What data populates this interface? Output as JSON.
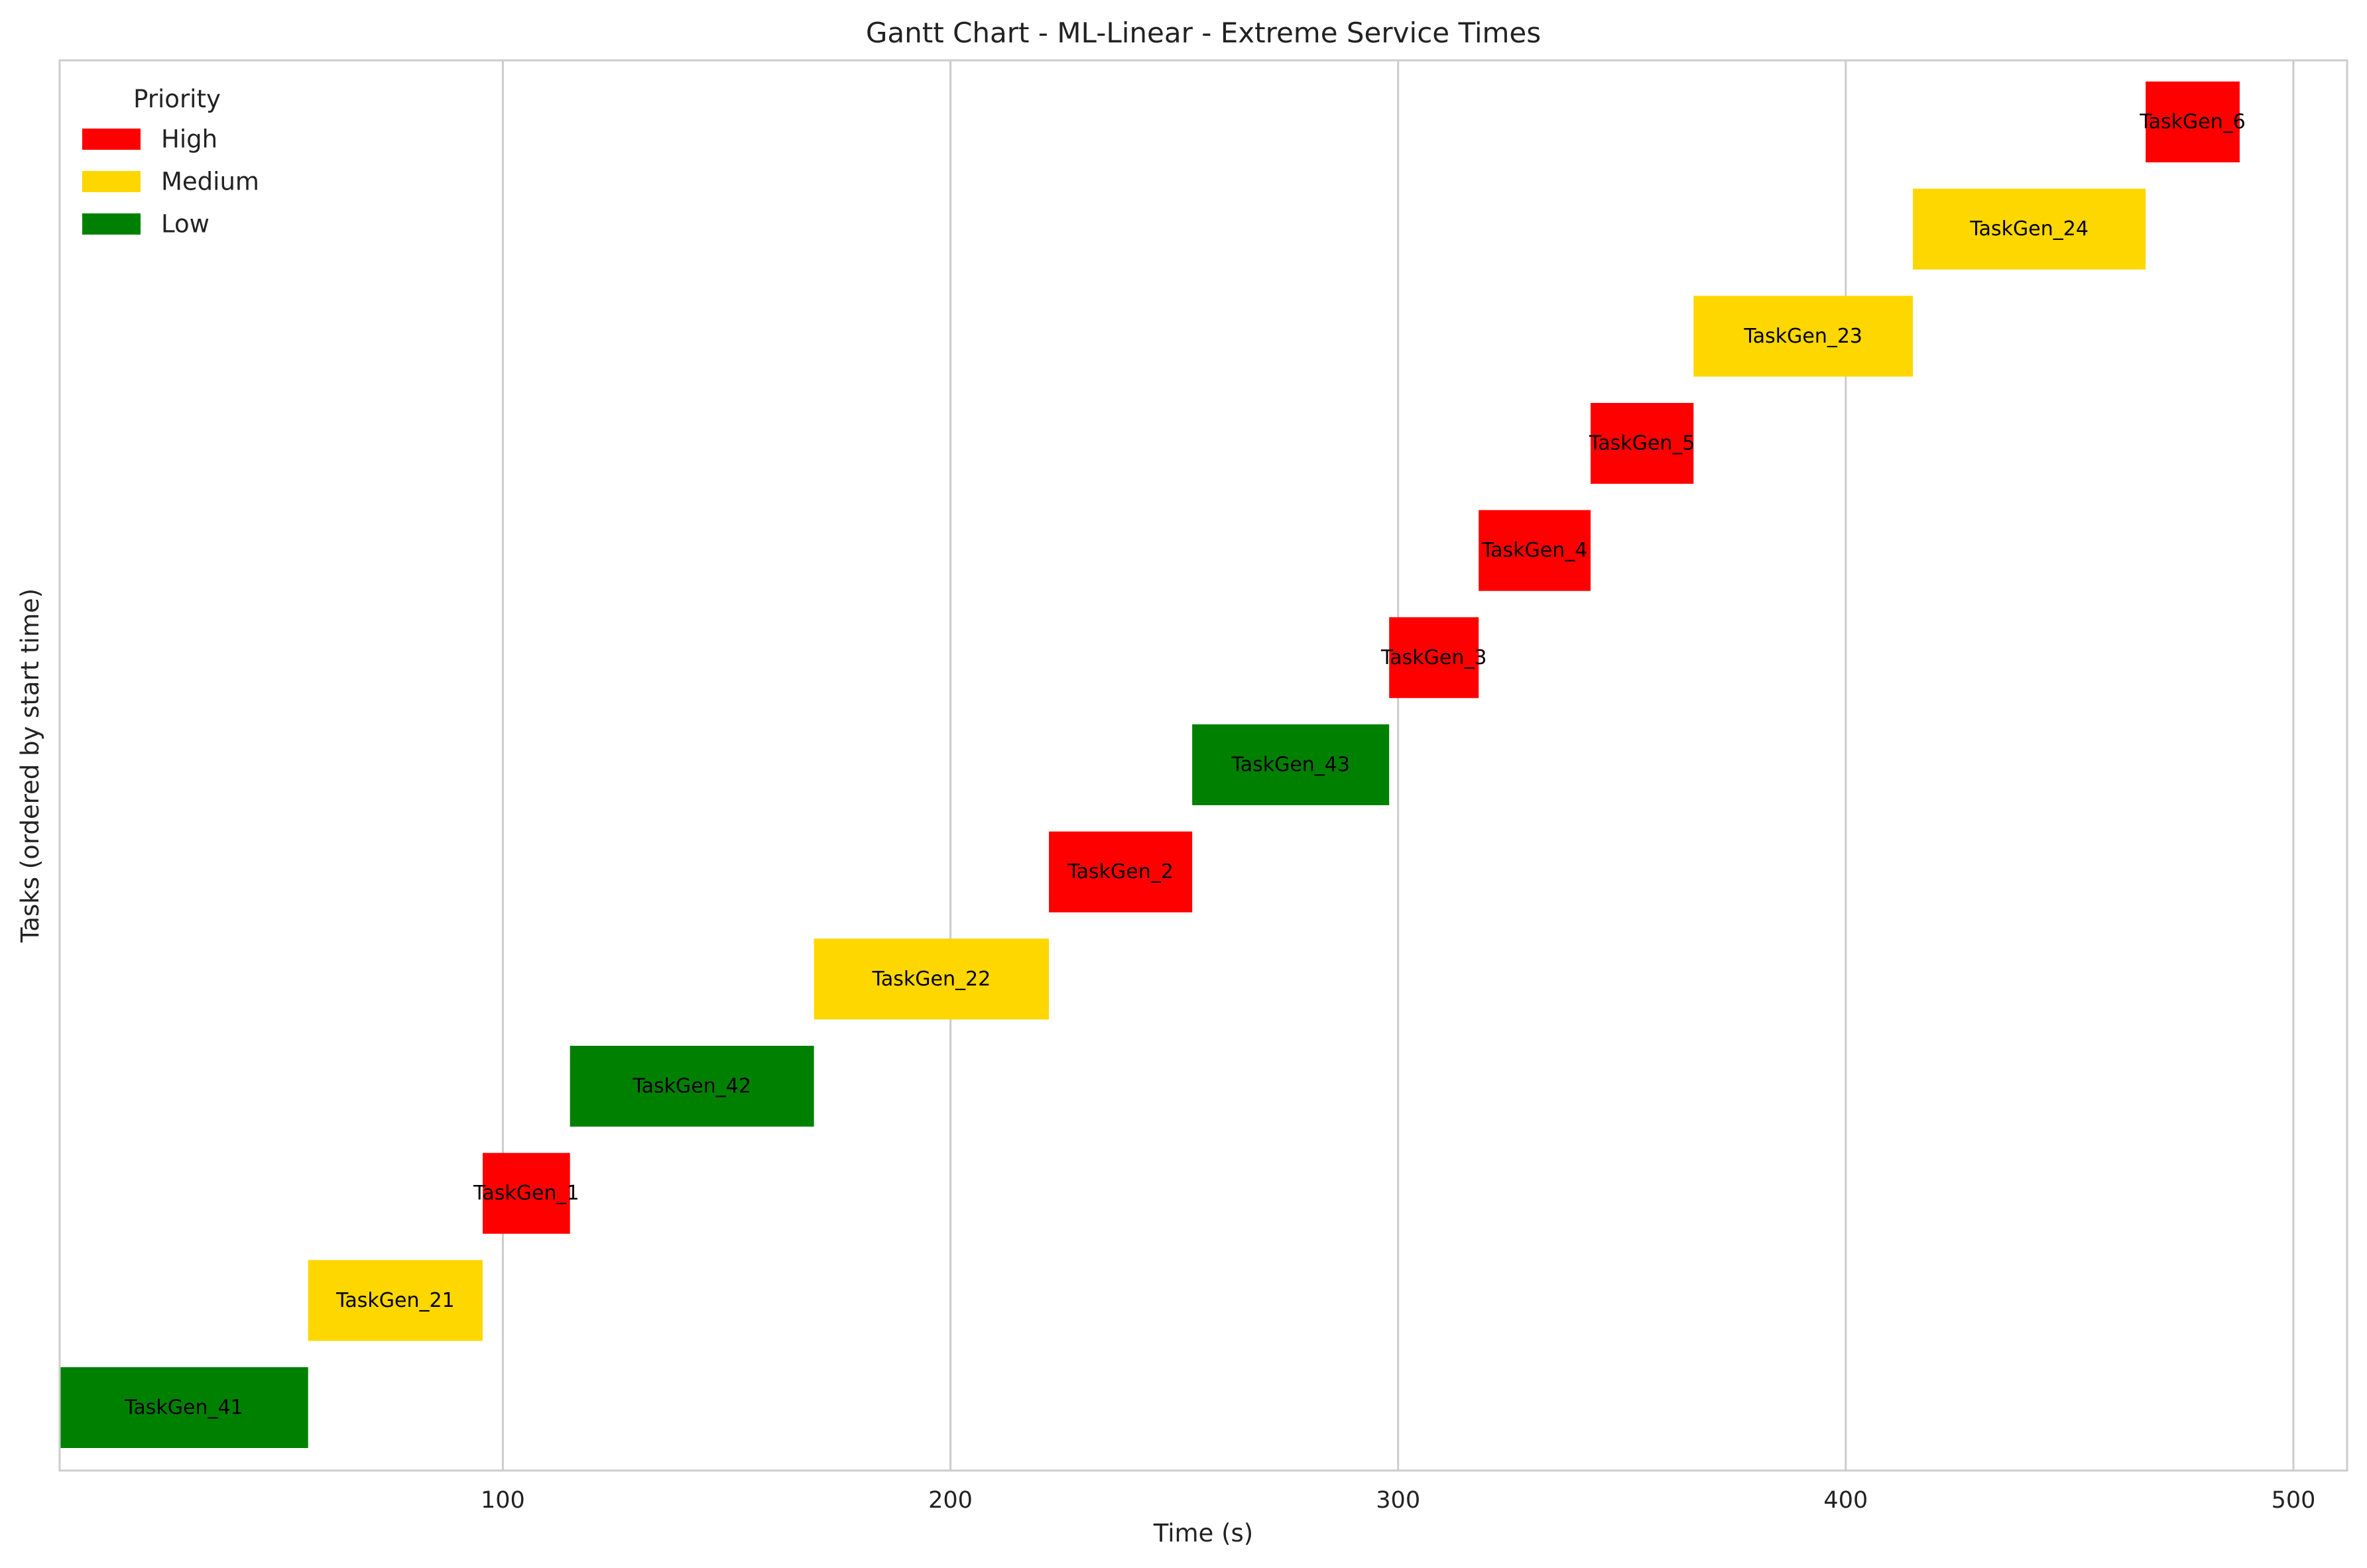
{
  "chart_data": {
    "type": "gantt",
    "title": "Gantt Chart - ML-Linear - Extreme Service Times",
    "xlabel": "Time (s)",
    "ylabel": "Tasks (ordered by start time)",
    "xlim": [
      1,
      512
    ],
    "xticks": [
      100,
      200,
      300,
      400,
      500
    ],
    "grid": "vertical",
    "legend": {
      "title": "Priority",
      "placement": "top-left",
      "entries": [
        {
          "label": "High",
          "color": "#ff0000"
        },
        {
          "label": "Medium",
          "color": "#ffd700"
        },
        {
          "label": "Low",
          "color": "#008000"
        }
      ]
    },
    "tasks": [
      {
        "name": "TaskGen_41",
        "priority": "Low",
        "start": 1,
        "end": 56.5
      },
      {
        "name": "TaskGen_21",
        "priority": "Medium",
        "start": 56.5,
        "end": 95.5
      },
      {
        "name": "TaskGen_1",
        "priority": "High",
        "start": 95.5,
        "end": 115
      },
      {
        "name": "TaskGen_42",
        "priority": "Low",
        "start": 115,
        "end": 169.5
      },
      {
        "name": "TaskGen_22",
        "priority": "Medium",
        "start": 169.5,
        "end": 222
      },
      {
        "name": "TaskGen_2",
        "priority": "High",
        "start": 222,
        "end": 254
      },
      {
        "name": "TaskGen_43",
        "priority": "Low",
        "start": 254,
        "end": 298
      },
      {
        "name": "TaskGen_3",
        "priority": "High",
        "start": 298,
        "end": 318
      },
      {
        "name": "TaskGen_4",
        "priority": "High",
        "start": 318,
        "end": 343
      },
      {
        "name": "TaskGen_5",
        "priority": "High",
        "start": 343,
        "end": 366
      },
      {
        "name": "TaskGen_23",
        "priority": "Medium",
        "start": 366,
        "end": 415
      },
      {
        "name": "TaskGen_24",
        "priority": "Medium",
        "start": 415,
        "end": 467
      },
      {
        "name": "TaskGen_6",
        "priority": "High",
        "start": 467,
        "end": 488
      }
    ]
  }
}
